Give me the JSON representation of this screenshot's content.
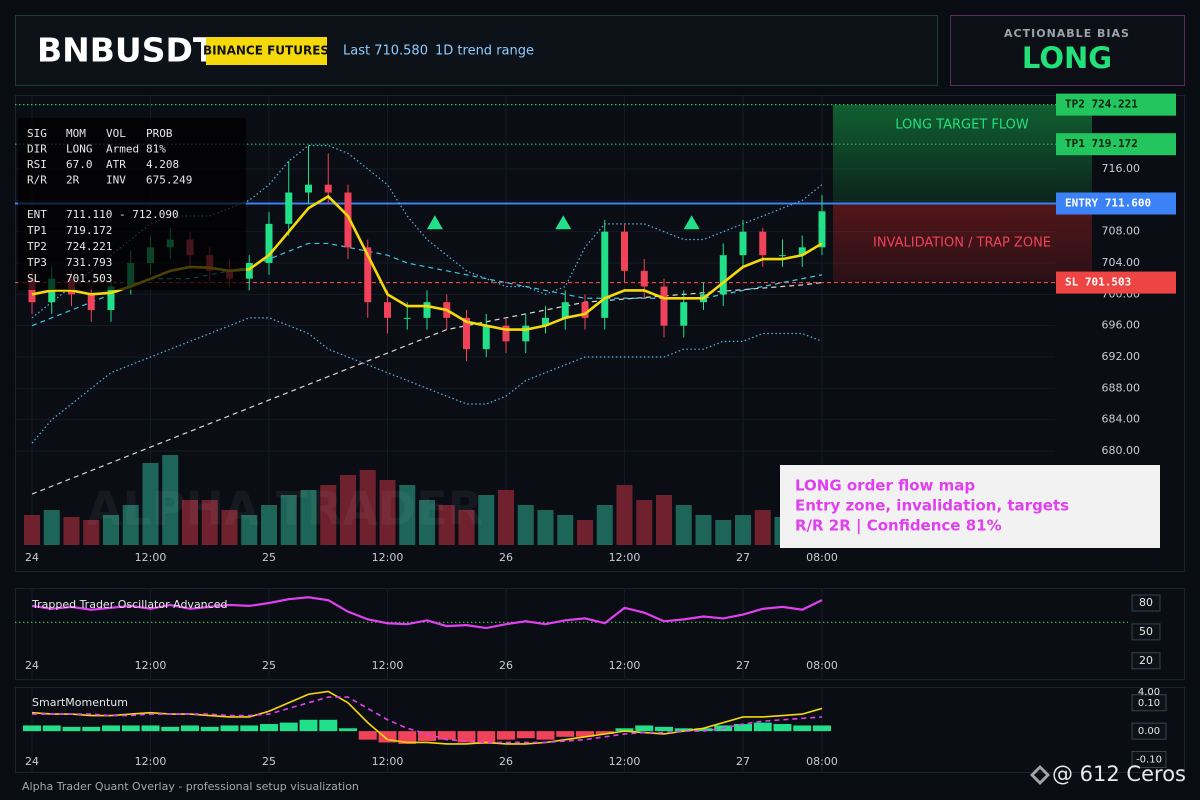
{
  "header": {
    "symbol": "BNBUSDT",
    "badge": "BINANCE FUTURES",
    "last": "Last 710.580",
    "range": "1D trend range"
  },
  "bias": {
    "label": "ACTIONABLE BIAS",
    "value": "LONG"
  },
  "info_table": {
    "rows": [
      [
        "SIG",
        "MOM",
        "VOL",
        "PROB"
      ],
      [
        "DIR",
        "LONG",
        "Armed",
        "81%"
      ],
      [
        "RSI",
        "67.0",
        "ATR",
        "4.208"
      ],
      [
        "R/R",
        "2R",
        "INV",
        "675.249"
      ]
    ],
    "plan": [
      [
        "ENT",
        "711.110 - 712.090"
      ],
      [
        "TP1",
        "719.172"
      ],
      [
        "TP2",
        "724.221"
      ],
      [
        "TP3",
        "731.793"
      ],
      [
        "SL",
        "701.503"
      ]
    ]
  },
  "annotation": [
    "LONG order flow map",
    "Entry zone, invalidation, targets",
    "R/R 2R | Confidence 81%"
  ],
  "watermark": "ALPHA TRADER",
  "footer": "Alpha Trader Quant Overlay - professional setup visualization",
  "credit": "@ 612 Ceros",
  "chart_data": [
    {
      "type": "candlestick",
      "open": [
        702,
        699,
        702,
        700,
        698,
        701,
        704,
        706,
        707,
        705,
        703,
        702,
        704,
        709,
        713,
        714,
        713,
        706,
        699,
        697,
        697,
        699,
        697,
        693,
        696,
        694,
        696,
        697,
        699,
        697,
        708,
        703,
        701,
        696,
        699,
        700,
        705,
        708,
        705,
        705,
        706
      ],
      "high": [
        703,
        703.5,
        703,
        701,
        702.5,
        705.5,
        707.5,
        708.5,
        708,
        706,
        704.5,
        705,
        710.5,
        717,
        719,
        718,
        714,
        707,
        700.5,
        699,
        700.5,
        700,
        698,
        697.5,
        697,
        697.5,
        698.5,
        700.5,
        700,
        709.5,
        709,
        704.5,
        702,
        700.5,
        701.5,
        706.5,
        709.5,
        708.5,
        707,
        707.5,
        712.7
      ],
      "low": [
        697.5,
        697.5,
        698.5,
        696.5,
        696.5,
        700,
        702.5,
        704.5,
        703.5,
        701.5,
        701,
        700.5,
        702.5,
        707.5,
        711.5,
        711.5,
        704.5,
        697,
        695,
        695.5,
        695.5,
        695.5,
        691.5,
        692,
        692.5,
        692.5,
        695,
        695.5,
        695.5,
        695.5,
        701.5,
        699.5,
        694.5,
        694.5,
        698,
        698.5,
        703.5,
        703.5,
        703.5,
        703.5,
        705
      ],
      "close": [
        699,
        702,
        700,
        698,
        701,
        704,
        706,
        707,
        705,
        703,
        702,
        704,
        709,
        713,
        714,
        713,
        706,
        699,
        697,
        697,
        699,
        697,
        693,
        696,
        694,
        696,
        697,
        699,
        697,
        708,
        703,
        701,
        696,
        699,
        700,
        705,
        708,
        705,
        705,
        706,
        710.6
      ],
      "volume": [
        30,
        35,
        28,
        25,
        30,
        40,
        82,
        90,
        45,
        45,
        35,
        30,
        40,
        50,
        55,
        60,
        70,
        75,
        65,
        60,
        45,
        40,
        35,
        50,
        55,
        40,
        35,
        30,
        25,
        40,
        60,
        45,
        50,
        40,
        30,
        25,
        30,
        35,
        28,
        25,
        30
      ],
      "up_color": "#22e08a",
      "down_color": "#f0435a",
      "lines": [
        {
          "color": "#5fb4e6",
          "style": "dotted",
          "values": [
            697,
            699,
            701,
            703,
            705,
            707,
            709,
            710,
            710,
            710,
            711,
            712,
            714,
            717,
            719,
            719,
            718,
            716,
            714,
            710,
            707,
            705,
            703,
            702,
            701,
            701,
            700,
            701,
            706,
            709,
            709,
            709,
            708,
            707,
            707,
            708,
            709,
            710,
            711,
            712,
            714
          ]
        },
        {
          "color": "#5fb4e6",
          "style": "dotted",
          "values": [
            681,
            684,
            686,
            688,
            690,
            691,
            692,
            693,
            694,
            695,
            696,
            697,
            697,
            696,
            695,
            693,
            692,
            691,
            690,
            689,
            688,
            687,
            686,
            686,
            687,
            689,
            690,
            691,
            692,
            692,
            692,
            692,
            692,
            693,
            693,
            694,
            694,
            695,
            695,
            695,
            694
          ]
        },
        {
          "color": "#3cc8e6",
          "style": "dashed",
          "values": [
            696,
            697,
            698,
            699,
            700,
            701,
            702,
            702,
            702,
            702.5,
            703,
            703.5,
            704.5,
            705.5,
            706.5,
            706.5,
            706,
            705.5,
            705,
            704,
            703.5,
            703,
            702.5,
            702,
            701.5,
            701,
            700.5,
            700,
            699.5,
            699.5,
            699.5,
            699.5,
            699.5,
            699.5,
            699.5,
            700,
            700.5,
            701,
            701.5,
            702,
            702.5
          ]
        },
        {
          "color": "#d8d8d8",
          "style": "dashed",
          "values": [
            674.5,
            675.5,
            676.5,
            677.5,
            678.5,
            679.5,
            680.5,
            681.5,
            682.5,
            683.5,
            684.5,
            685.5,
            686.5,
            687.5,
            688.5,
            689.5,
            690.5,
            691.5,
            692.5,
            693.5,
            694.5,
            695.5,
            696,
            696.5,
            697,
            697.5,
            698,
            698.5,
            699,
            699.2,
            699.4,
            699.6,
            699.8,
            700,
            700.2,
            700.4,
            700.6,
            700.8,
            701,
            701.2,
            701.5
          ]
        },
        {
          "color": "#f5d90a",
          "style": "solid",
          "values": [
            700,
            700.5,
            700.5,
            700,
            700.2,
            701,
            702,
            703,
            703.5,
            703.4,
            703,
            703.2,
            705,
            708,
            711,
            712.5,
            710,
            705,
            700,
            698.5,
            698.5,
            698,
            696.5,
            696,
            695.5,
            695.5,
            696,
            697,
            697.5,
            699.5,
            700.5,
            700.5,
            699.5,
            699.5,
            699.5,
            701.5,
            703.5,
            704.5,
            704.5,
            705,
            706.5
          ]
        }
      ],
      "signals": {
        "x": [
          20.4,
          26.9,
          33.4
        ],
        "y": [
          709.2,
          709.2,
          709.2
        ],
        "color": "#22e08a"
      },
      "levels": [
        {
          "label": "TP2 724.221",
          "value": 724.221,
          "color": "#22c55e"
        },
        {
          "label": "TP1 719.172",
          "value": 719.172,
          "color": "#22c55e"
        },
        {
          "label": "ENTRY 711.600",
          "value": 711.6,
          "color": "#3b82f6"
        },
        {
          "label": "SL 701.503",
          "value": 701.503,
          "color": "#ef4444"
        }
      ],
      "target_zone_label": "LONG TARGET FLOW",
      "trap_zone_label": "INVALIDATION / TRAP ZONE",
      "ylim": [
        668,
        725.45
      ],
      "yticks": [
        {
          "value": 680,
          "label": "680.00"
        },
        {
          "value": 684,
          "label": "684.00"
        },
        {
          "value": 688,
          "label": "688.00"
        },
        {
          "value": 692,
          "label": "692.00"
        },
        {
          "value": 696,
          "label": "696.00"
        },
        {
          "value": 700,
          "label": "700.00"
        },
        {
          "value": 704,
          "label": "704.00"
        },
        {
          "value": 708,
          "label": "708.00"
        },
        {
          "value": 712,
          "label": "712.00"
        },
        {
          "value": 716,
          "label": "716.00"
        }
      ],
      "xticks": [
        {
          "value": 0,
          "label": "24"
        },
        {
          "value": 6,
          "label": "12:00"
        },
        {
          "value": 12,
          "label": "25"
        },
        {
          "value": 18,
          "label": "12:00"
        },
        {
          "value": 24,
          "label": "26"
        },
        {
          "value": 30,
          "label": "12:00"
        },
        {
          "value": 36,
          "label": "27"
        },
        {
          "value": 40,
          "label": "08:00"
        }
      ]
    },
    {
      "type": "line",
      "title": "Trapped Trader Oscillator Advanced",
      "color": "#e040f0",
      "values": [
        77,
        74,
        76,
        73,
        75,
        77,
        74,
        78,
        74,
        76,
        78,
        77,
        80,
        84,
        86,
        83,
        71,
        63,
        59,
        58,
        62,
        56,
        57,
        54,
        58,
        61,
        58,
        62,
        64,
        59,
        75,
        70,
        61,
        63,
        66,
        64,
        68,
        74,
        76,
        73,
        83
      ],
      "signal_level": 60,
      "signal_color": "#5fd35f",
      "ylim": [
        0,
        95.6
      ],
      "yticks": [
        80,
        50,
        20
      ]
    },
    {
      "type": "momentum",
      "title": "SmartMomentum",
      "clipped_label": "4.00",
      "up_color": "#22e08a",
      "down_color": "#f0435a",
      "histogram": [
        0.02,
        0.02,
        0.015,
        0.015,
        0.02,
        0.02,
        0.02,
        0.015,
        0.02,
        0.015,
        0.02,
        0.02,
        0.025,
        0.03,
        0.04,
        0.04,
        0.01,
        -0.03,
        -0.04,
        -0.045,
        -0.035,
        -0.03,
        -0.04,
        -0.045,
        -0.03,
        -0.025,
        -0.03,
        -0.02,
        -0.02,
        -0.01,
        0.01,
        0.02,
        0.015,
        0.01,
        0.01,
        0.02,
        0.025,
        0.03,
        0.025,
        0.02,
        0.02
      ],
      "lines": [
        {
          "color": "#f5d90a",
          "style": "solid",
          "values": [
            0.065,
            0.06,
            0.06,
            0.055,
            0.055,
            0.06,
            0.065,
            0.06,
            0.06,
            0.055,
            0.05,
            0.05,
            0.07,
            0.1,
            0.13,
            0.14,
            0.1,
            0.03,
            -0.03,
            -0.04,
            -0.04,
            -0.045,
            -0.045,
            -0.04,
            -0.045,
            -0.045,
            -0.04,
            -0.03,
            -0.02,
            -0.01,
            0,
            -0.005,
            -0.01,
            0,
            0.01,
            0.03,
            0.05,
            0.05,
            0.055,
            0.06,
            0.08
          ]
        },
        {
          "color": "#e040f0",
          "style": "dashed",
          "values": [
            0.06,
            0.06,
            0.06,
            0.06,
            0.055,
            0.055,
            0.06,
            0.06,
            0.06,
            0.06,
            0.055,
            0.055,
            0.06,
            0.08,
            0.1,
            0.12,
            0.12,
            0.08,
            0.04,
            0.01,
            -0.01,
            -0.03,
            -0.035,
            -0.04,
            -0.04,
            -0.04,
            -0.04,
            -0.035,
            -0.03,
            -0.02,
            -0.01,
            -0.005,
            -0.005,
            0,
            0,
            0.01,
            0.025,
            0.035,
            0.04,
            0.045,
            0.05
          ]
        }
      ],
      "ylim": [
        -0.144,
        0.152
      ],
      "yticks": [
        {
          "value": 0.1,
          "label": "0.10"
        },
        {
          "value": 0,
          "label": "0.00"
        },
        {
          "value": -0.1,
          "label": "-0.10"
        }
      ]
    }
  ]
}
